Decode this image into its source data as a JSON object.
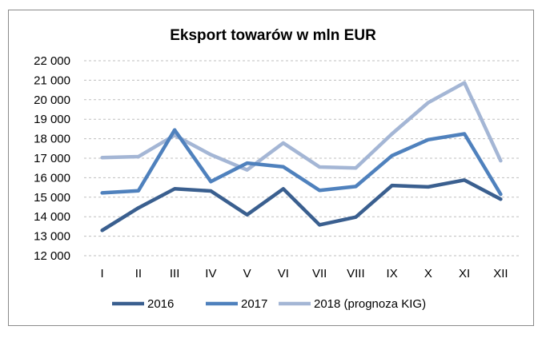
{
  "chart_data": {
    "type": "line",
    "title": "Eksport towarów w mln EUR",
    "categories": [
      "I",
      "II",
      "III",
      "IV",
      "V",
      "VI",
      "VII",
      "VIII",
      "IX",
      "X",
      "XI",
      "XII"
    ],
    "ylim": [
      12000,
      22000
    ],
    "yticks": [
      12000,
      13000,
      14000,
      15000,
      16000,
      17000,
      18000,
      19000,
      20000,
      21000,
      22000
    ],
    "ytick_labels": [
      "12 000",
      "13 000",
      "14 000",
      "15 000",
      "16 000",
      "17 000",
      "18 000",
      "19 000",
      "20 000",
      "21 000",
      "22 000"
    ],
    "grid": true,
    "legend": "bottom",
    "series": [
      {
        "name": "2016",
        "color": "#3a5f8f",
        "values": [
          13300,
          14450,
          15430,
          15320,
          14100,
          15430,
          13580,
          13980,
          15600,
          15530,
          15880,
          14900
        ]
      },
      {
        "name": "2017",
        "color": "#4f81bd",
        "values": [
          15220,
          15330,
          18450,
          15800,
          16750,
          16560,
          15350,
          15550,
          17130,
          17950,
          18250,
          15150
        ]
      },
      {
        "name": "2018 (prognoza KIG)",
        "color": "#a4b6d5",
        "values": [
          17030,
          17080,
          18180,
          17180,
          16400,
          17780,
          16550,
          16500,
          18250,
          19850,
          20870,
          16870
        ]
      }
    ]
  }
}
